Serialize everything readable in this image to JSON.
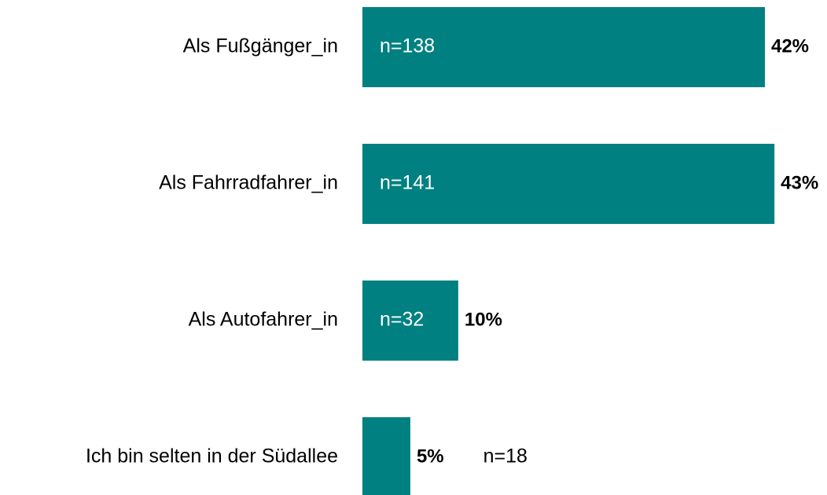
{
  "chart_data": {
    "type": "hbar",
    "categories": [
      "Als Fußgänger_in",
      "Als Fahrradfahrer_in",
      "Als Autofahrer_in",
      "Ich bin selten in der Südallee"
    ],
    "values": [
      42,
      43,
      10,
      5
    ],
    "value_labels": [
      "42%",
      "43%",
      "10%",
      "5%"
    ],
    "annotations": [
      "n=138",
      "n=141",
      "n=32",
      "n=18"
    ],
    "color": "#008080"
  }
}
